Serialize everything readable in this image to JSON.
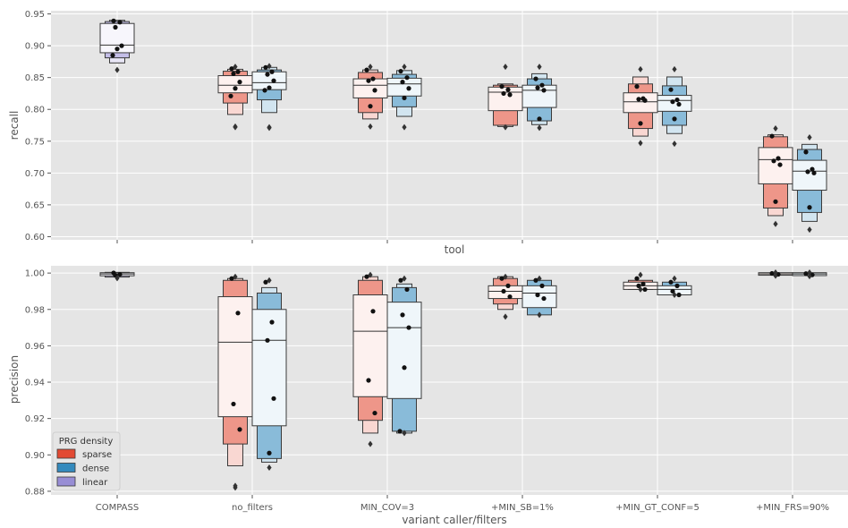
{
  "colors": {
    "panel_bg": "#e5e5e5",
    "grid": "#ffffff",
    "sparse": "#e24a33",
    "dense": "#348abd",
    "linear": "#988ed5",
    "median": "#333333",
    "edge": "#3a3a3a",
    "point": "#111111"
  },
  "legend": {
    "title": "PRG density",
    "placement": "lower-left of bottom panel",
    "entries": [
      "sparse",
      "dense",
      "linear"
    ]
  },
  "chart_data": [
    {
      "type": "boxen",
      "xlabel": "tool",
      "ylabel": "recall",
      "ylim": [
        0.595,
        0.955
      ],
      "yticks": [
        "0.60",
        "0.65",
        "0.70",
        "0.75",
        "0.80",
        "0.85",
        "0.90",
        "0.95"
      ],
      "ytick_values": [
        0.6,
        0.65,
        0.7,
        0.75,
        0.8,
        0.85,
        0.9,
        0.95
      ],
      "categories": [
        "COMPASS",
        "no_filters",
        "MIN_COV=3",
        "+MIN_SB=1%",
        "+MIN_GT_CONF=5",
        "+MIN_FRS=90%"
      ],
      "show_xtick_labels": false,
      "grid": true,
      "series": [
        {
          "name": "sparse",
          "boxes": [
            null,
            {
              "median": 0.838,
              "levels": [
                [
                  0.826,
                  0.853
                ],
                [
                  0.81,
                  0.86
                ],
                [
                  0.792,
                  0.863
                ]
              ],
              "points": [
                0.864,
                0.859,
                0.856,
                0.843,
                0.833,
                0.821
              ],
              "outliers": [
                0.867,
                0.773,
                0.772
              ]
            },
            {
              "median": 0.838,
              "levels": [
                [
                  0.818,
                  0.848
                ],
                [
                  0.795,
                  0.858
                ],
                [
                  0.785,
                  0.862
                ]
              ],
              "points": [
                0.862,
                0.848,
                0.845,
                0.83,
                0.805
              ],
              "outliers": [
                0.867,
                0.773
              ]
            },
            {
              "median": 0.827,
              "levels": [
                [
                  0.798,
                  0.835
                ],
                [
                  0.775,
                  0.838
                ],
                [
                  0.773,
                  0.84
                ]
              ],
              "points": [
                0.836,
                0.831,
                0.825,
                0.823
              ],
              "outliers": [
                0.867,
                0.772
              ]
            },
            {
              "median": 0.812,
              "levels": [
                [
                  0.795,
                  0.826
                ],
                [
                  0.77,
                  0.84
                ],
                [
                  0.758,
                  0.851
                ]
              ],
              "points": [
                0.836,
                0.817,
                0.816,
                0.814,
                0.778
              ],
              "outliers": [
                0.863,
                0.747
              ]
            },
            {
              "median": 0.721,
              "levels": [
                [
                  0.683,
                  0.74
                ],
                [
                  0.645,
                  0.757
                ],
                [
                  0.633,
                  0.76
                ]
              ],
              "points": [
                0.758,
                0.723,
                0.719,
                0.713,
                0.655
              ],
              "outliers": [
                0.77,
                0.62
              ]
            }
          ]
        },
        {
          "name": "dense",
          "boxes": [
            null,
            {
              "median": 0.842,
              "levels": [
                [
                  0.831,
                  0.859
                ],
                [
                  0.815,
                  0.862
                ],
                [
                  0.795,
                  0.866
                ]
              ],
              "points": [
                0.866,
                0.859,
                0.855,
                0.845,
                0.834,
                0.83
              ],
              "outliers": [
                0.868,
                0.772,
                0.771
              ]
            },
            {
              "median": 0.84,
              "levels": [
                [
                  0.821,
                  0.849
                ],
                [
                  0.804,
                  0.855
                ],
                [
                  0.789,
                  0.861
                ]
              ],
              "points": [
                0.86,
                0.85,
                0.843,
                0.833,
                0.818
              ],
              "outliers": [
                0.867,
                0.772
              ]
            },
            {
              "median": 0.83,
              "levels": [
                [
                  0.803,
                  0.838
                ],
                [
                  0.782,
                  0.848
                ],
                [
                  0.776,
                  0.856
                ]
              ],
              "points": [
                0.848,
                0.838,
                0.834,
                0.83,
                0.785
              ],
              "outliers": [
                0.867,
                0.771
              ]
            },
            {
              "median": 0.814,
              "levels": [
                [
                  0.797,
                  0.822
                ],
                [
                  0.775,
                  0.837
                ],
                [
                  0.762,
                  0.851
                ]
              ],
              "points": [
                0.831,
                0.815,
                0.812,
                0.808,
                0.785
              ],
              "outliers": [
                0.863,
                0.746
              ]
            },
            {
              "median": 0.703,
              "levels": [
                [
                  0.673,
                  0.72
                ],
                [
                  0.638,
                  0.737
                ],
                [
                  0.624,
                  0.745
                ]
              ],
              "points": [
                0.733,
                0.706,
                0.702,
                0.7,
                0.646
              ],
              "outliers": [
                0.756,
                0.611
              ]
            }
          ]
        },
        {
          "name": "linear",
          "boxes": [
            {
              "median": 0.901,
              "levels": [
                [
                  0.889,
                  0.935
                ],
                [
                  0.881,
                  0.938
                ],
                [
                  0.873,
                  0.94
                ]
              ],
              "points": [
                0.939,
                0.937,
                0.929,
                0.9,
                0.895,
                0.885
              ],
              "outliers": [
                0.862
              ]
            },
            null,
            null,
            null,
            null,
            null
          ]
        }
      ]
    },
    {
      "type": "boxen",
      "xlabel": "variant caller/filters",
      "ylabel": "precision",
      "ylim": [
        0.878,
        1.004
      ],
      "yticks": [
        "0.88",
        "0.90",
        "0.92",
        "0.94",
        "0.96",
        "0.98",
        "1.00"
      ],
      "ytick_values": [
        0.88,
        0.9,
        0.92,
        0.94,
        0.96,
        0.98,
        1.0
      ],
      "categories": [
        "COMPASS",
        "no_filters",
        "MIN_COV=3",
        "+MIN_SB=1%",
        "+MIN_GT_CONF=5",
        "+MIN_FRS=90%"
      ],
      "show_xtick_labels": true,
      "grid": true,
      "series": [
        {
          "name": "sparse",
          "boxes": [
            null,
            {
              "median": 0.962,
              "levels": [
                [
                  0.921,
                  0.987
                ],
                [
                  0.906,
                  0.996
                ],
                [
                  0.894,
                  0.997
                ]
              ],
              "points": [
                0.997,
                0.978,
                0.928,
                0.914
              ],
              "outliers": [
                0.998,
                0.883,
                0.882
              ]
            },
            {
              "median": 0.968,
              "levels": [
                [
                  0.932,
                  0.988
                ],
                [
                  0.919,
                  0.996
                ],
                [
                  0.912,
                  0.998
                ]
              ],
              "points": [
                0.998,
                0.979,
                0.941,
                0.923
              ],
              "outliers": [
                0.999,
                0.906
              ]
            },
            {
              "median": 0.99,
              "levels": [
                [
                  0.986,
                  0.993
                ],
                [
                  0.983,
                  0.997
                ],
                [
                  0.98,
                  0.998
                ]
              ],
              "points": [
                0.997,
                0.993,
                0.99,
                0.987
              ],
              "outliers": [
                0.998,
                0.976
              ]
            },
            {
              "median": 0.993,
              "levels": [
                [
                  0.991,
                  0.995
                ],
                [
                  0.991,
                  0.996
                ]
              ],
              "points": [
                0.997,
                0.994,
                0.993,
                0.991
              ],
              "outliers": [
                0.999,
                0.991
              ]
            },
            {
              "median": 0.9995,
              "levels": [
                [
                  0.9988,
                  1.0002
                ]
              ],
              "points": [
                0.9998,
                0.9993
              ],
              "outliers": [
                1.0003,
                0.9985
              ]
            }
          ]
        },
        {
          "name": "dense",
          "boxes": [
            null,
            {
              "median": 0.963,
              "levels": [
                [
                  0.916,
                  0.98
                ],
                [
                  0.898,
                  0.989
                ],
                [
                  0.896,
                  0.992
                ]
              ],
              "points": [
                0.995,
                0.973,
                0.963,
                0.931,
                0.901
              ],
              "outliers": [
                0.996,
                0.893
              ]
            },
            {
              "median": 0.97,
              "levels": [
                [
                  0.931,
                  0.984
                ],
                [
                  0.913,
                  0.992
                ],
                [
                  0.912,
                  0.994
                ]
              ],
              "points": [
                0.996,
                0.991,
                0.977,
                0.97,
                0.948,
                0.913
              ],
              "outliers": [
                0.997,
                0.912
              ]
            },
            {
              "median": 0.989,
              "levels": [
                [
                  0.981,
                  0.993
                ],
                [
                  0.977,
                  0.996
                ]
              ],
              "points": [
                0.996,
                0.993,
                0.988,
                0.986
              ],
              "outliers": [
                0.997,
                0.977
              ]
            },
            {
              "median": 0.991,
              "levels": [
                [
                  0.988,
                  0.993
                ],
                [
                  0.988,
                  0.995
                ]
              ],
              "points": [
                0.995,
                0.993,
                0.99,
                0.988
              ],
              "outliers": [
                0.997,
                0.988
              ]
            },
            {
              "median": 0.9995,
              "levels": [
                [
                  0.9986,
                  1.0002
                ]
              ],
              "points": [
                0.9997,
                0.999
              ],
              "outliers": [
                1.0003,
                0.9983
              ]
            }
          ]
        },
        {
          "name": "linear",
          "boxes": [
            {
              "median": 0.9995,
              "levels": [
                [
                  0.9985,
                  1.0002
                ],
                [
                  0.9978,
                  1.0004
                ]
              ],
              "points": [
                1.0001,
                0.9993,
                0.9988
              ],
              "outliers": [
                0.9972
              ]
            },
            null,
            null,
            null,
            null,
            null
          ]
        }
      ]
    }
  ]
}
